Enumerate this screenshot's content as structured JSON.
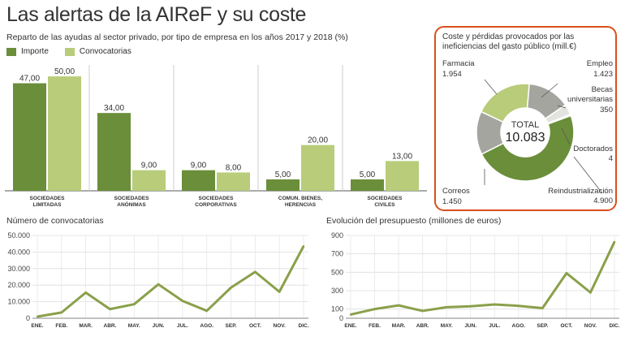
{
  "title": "Las alertas de la AIReF y su coste",
  "subtitle": "Reparto de las ayudas al sector privado, por tipo de empresa en los años 2017 y 2018 (%)",
  "colors": {
    "dark": "#6b8e3a",
    "light": "#b8cc7a",
    "gray": "#a5a5a0",
    "lightgray": "#e3e3e0",
    "border": "#d9501c",
    "line": "#8aa04a"
  },
  "legend": [
    {
      "label": "Importe",
      "color": "#6b8e3a"
    },
    {
      "label": "Convocatorias",
      "color": "#b8cc7a"
    }
  ],
  "donut": {
    "title": "Coste y pérdidas provocados por las ineficiencias del gasto público (mill.€)",
    "total_label": "TOTAL",
    "total_value": "10.083",
    "segments": [
      {
        "name": "Reindustrialización",
        "value": 4900,
        "value_label": "4.900",
        "color": "#6b8e3a"
      },
      {
        "name": "Correos",
        "value": 1450,
        "value_label": "1.450",
        "color": "#a5a5a0"
      },
      {
        "name": "Farmacia",
        "value": 1954,
        "value_label": "1.954",
        "color": "#b8cc7a"
      },
      {
        "name": "Empleo",
        "value": 1423,
        "value_label": "1.423",
        "color": "#a5a5a0"
      },
      {
        "name": "Becas universitarias",
        "value": 350,
        "value_label": "350",
        "color": "#e3e3e0"
      },
      {
        "name": "Doctorados",
        "value": 4,
        "value_label": "4",
        "color": "#cfcfcc"
      }
    ]
  },
  "chart_data": [
    {
      "type": "bar",
      "categories": [
        "SOCIEDADES LIMITADAS",
        "SOCIEDADES ANÓNIMAS",
        "SOCIEDADES CORPORATIVAS",
        "COMUN. BIENES, HERENCIAS",
        "SOCIEDADES CIVILES"
      ],
      "series": [
        {
          "name": "Importe",
          "values": [
            47.0,
            34.0,
            9.0,
            5.0,
            5.0
          ],
          "labels": [
            "47,00",
            "34,00",
            "9,00",
            "5,00",
            "5,00"
          ]
        },
        {
          "name": "Convocatorias",
          "values": [
            50.0,
            9.0,
            8.0,
            20.0,
            13.0
          ],
          "labels": [
            "50,00",
            "9,00",
            "8,00",
            "20,00",
            "13,00"
          ]
        }
      ],
      "ylim": [
        0,
        55
      ]
    },
    {
      "type": "line",
      "title": "Número de convocatorias",
      "x": [
        "ENE.",
        "FEB.",
        "MAR.",
        "ABR.",
        "MAY.",
        "JUN.",
        "JUL.",
        "AGO.",
        "SEP.",
        "OCT.",
        "NOV.",
        "DIC."
      ],
      "values": [
        1000,
        3500,
        15500,
        5500,
        8500,
        20500,
        10500,
        4500,
        18500,
        28000,
        16000,
        43500
      ],
      "yticks": [
        "0",
        "10.000",
        "20.000",
        "30.000",
        "40.000",
        "50.000"
      ],
      "ylim": [
        0,
        50000
      ]
    },
    {
      "type": "line",
      "title": "Evolución del presupuesto (millones de euros)",
      "x": [
        "ENE.",
        "FEB.",
        "MAR.",
        "ABR.",
        "MAY.",
        "JUN.",
        "JUL.",
        "AGO.",
        "SEP.",
        "OCT.",
        "NOV.",
        "DIC."
      ],
      "values": [
        40,
        100,
        140,
        80,
        120,
        130,
        150,
        135,
        110,
        490,
        280,
        830
      ],
      "yticks": [
        "0",
        "100",
        "300",
        "500",
        "700",
        "900"
      ],
      "ytick_values": [
        0,
        100,
        300,
        500,
        700,
        900
      ],
      "ylim": [
        0,
        900
      ]
    }
  ]
}
